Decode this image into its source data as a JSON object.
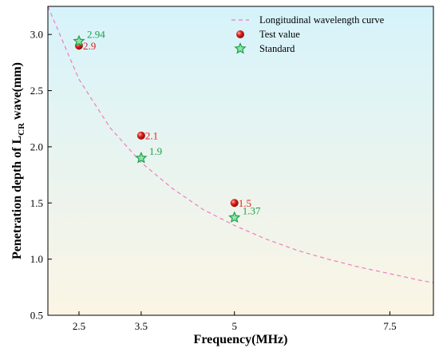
{
  "chart_data": {
    "type": "scatter",
    "title": "",
    "xlabel": "Frequency(MHz)",
    "ylabel_main": "Penetration depth of L",
    "ylabel_sub": "CR",
    "ylabel_tail": " wave(mm)",
    "xlim": [
      2.0,
      8.2
    ],
    "ylim": [
      0.5,
      3.25
    ],
    "x_ticks": [
      2.5,
      3.5,
      5,
      7.5
    ],
    "x_tick_labels": [
      "2.5",
      "3.5",
      "5",
      "7.5"
    ],
    "y_ticks": [
      0.5,
      1.0,
      1.5,
      2.0,
      2.5,
      3.0
    ],
    "y_tick_labels": [
      "0.5",
      "1.0",
      "1.5",
      "2.0",
      "2.5",
      "3.0"
    ],
    "grid": false,
    "legend_position": "top-right",
    "background_gradient": [
      "#d6f3fb",
      "#fbf5e4"
    ],
    "series": [
      {
        "name": "Longitudinal wavelength curve",
        "kind": "curve",
        "color": "#f07cc0",
        "x": [
          2.0,
          2.5,
          3.0,
          3.5,
          4.0,
          4.5,
          5.0,
          5.5,
          6.0,
          6.5,
          7.0,
          7.5,
          8.0,
          8.2
        ],
        "y": [
          3.25,
          2.6,
          2.17,
          1.86,
          1.63,
          1.44,
          1.3,
          1.18,
          1.08,
          1.0,
          0.93,
          0.87,
          0.81,
          0.79
        ]
      },
      {
        "name": "Test value",
        "kind": "marker-circle",
        "color": "#e0211d",
        "x": [
          2.5,
          3.5,
          5.0
        ],
        "y": [
          2.9,
          2.1,
          1.5
        ],
        "labels": [
          "2.9",
          "2.1",
          "1.5"
        ]
      },
      {
        "name": "Standard",
        "kind": "marker-star",
        "color": "#1fa04a",
        "x": [
          2.5,
          3.5,
          5.0
        ],
        "y": [
          2.94,
          1.9,
          1.37
        ],
        "labels": [
          "2.94",
          "1.9",
          "1.37"
        ]
      }
    ]
  }
}
